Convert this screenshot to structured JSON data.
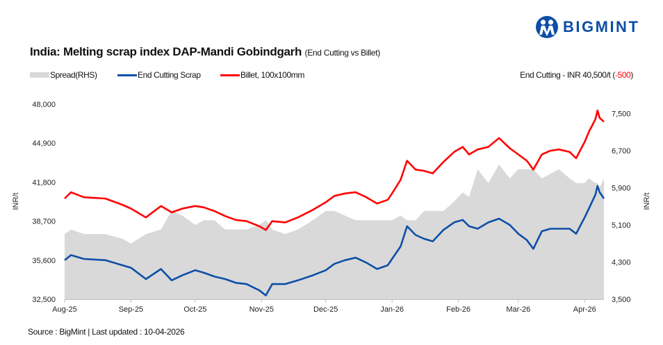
{
  "logo": {
    "text": "BIGMINT",
    "color": "#0d4ea6"
  },
  "title": "India: Melting scrap index DAP-Mandi Gobindgarh",
  "subtitle": "(End Cutting vs Billet)",
  "note": {
    "prefix": "End Cutting - INR 40,500/t (",
    "change": "-500",
    "suffix": ")"
  },
  "source": "Source : BigMint | Last updated : 10-04-2026",
  "chart_data": {
    "type": "line",
    "left_axis": {
      "label": "INR/t",
      "range": [
        32500,
        48000
      ],
      "ticks": [
        "32,500",
        "35,600",
        "38,700",
        "41,800",
        "44,900",
        "48,000"
      ],
      "tick_values": [
        32500,
        35600,
        38700,
        41800,
        44900,
        48000
      ]
    },
    "right_axis": {
      "label": "INR/t",
      "range": [
        3500,
        7700
      ],
      "ticks": [
        "3,500",
        "4,300",
        "5,100",
        "5,900",
        "6,700",
        "7,500"
      ],
      "tick_values": [
        3500,
        4300,
        5100,
        5900,
        6700,
        7500
      ]
    },
    "x_ticks": [
      "Aug-25",
      "Sep-25",
      "Oct-25",
      "Nov-25",
      "Dec-25",
      "Jan-26",
      "Feb-26",
      "Mar-26",
      "Apr-26"
    ],
    "x_tick_dates": [
      "2025-08-01",
      "2025-09-01",
      "2025-10-01",
      "2025-11-01",
      "2025-12-01",
      "2026-01-01",
      "2026-02-01",
      "2026-03-01",
      "2026-04-01"
    ],
    "grid": false,
    "legend_position": "top-left",
    "x": [
      "2025-08-01",
      "2025-08-04",
      "2025-08-10",
      "2025-08-20",
      "2025-08-28",
      "2025-09-01",
      "2025-09-08",
      "2025-09-15",
      "2025-09-20",
      "2025-09-25",
      "2025-10-01",
      "2025-10-05",
      "2025-10-10",
      "2025-10-15",
      "2025-10-20",
      "2025-10-25",
      "2025-10-31",
      "2025-11-03",
      "2025-11-06",
      "2025-11-12",
      "2025-11-18",
      "2025-11-25",
      "2025-12-01",
      "2025-12-05",
      "2025-12-10",
      "2025-12-15",
      "2025-12-20",
      "2025-12-25",
      "2025-12-30",
      "2026-01-01",
      "2026-01-05",
      "2026-01-08",
      "2026-01-12",
      "2026-01-16",
      "2026-01-20",
      "2026-01-25",
      "2026-01-30",
      "2026-02-03",
      "2026-02-06",
      "2026-02-10",
      "2026-02-15",
      "2026-02-20",
      "2026-02-25",
      "2026-03-01",
      "2026-03-05",
      "2026-03-08",
      "2026-03-12",
      "2026-03-16",
      "2026-03-20",
      "2026-03-25",
      "2026-03-28",
      "2026-04-01",
      "2026-04-03",
      "2026-04-06",
      "2026-04-07",
      "2026-04-08",
      "2026-04-10"
    ],
    "series": [
      {
        "name": "Spread(RHS)",
        "type": "area",
        "axis": "right",
        "color": "#d9d9d9",
        "values": [
          4900,
          5000,
          4900,
          4900,
          4800,
          4700,
          4900,
          5000,
          5400,
          5300,
          5100,
          5200,
          5200,
          5000,
          5000,
          5000,
          5100,
          5200,
          5000,
          4900,
          5000,
          5200,
          5400,
          5400,
          5300,
          5200,
          5200,
          5200,
          5200,
          5200,
          5300,
          5200,
          5200,
          5400,
          5400,
          5400,
          5600,
          5800,
          5700,
          6300,
          6000,
          6400,
          6100,
          6300,
          6300,
          6300,
          6100,
          6200,
          6300,
          6100,
          6000,
          6000,
          6100,
          6000,
          6000,
          5900,
          6100
        ]
      },
      {
        "name": "End Cutting Scrap",
        "axis": "left",
        "color": "#0d4ea6",
        "values": [
          35600,
          36000,
          35700,
          35600,
          35200,
          35000,
          34100,
          34900,
          34000,
          34400,
          34800,
          34600,
          34300,
          34100,
          33800,
          33700,
          33200,
          32800,
          33700,
          33700,
          34000,
          34400,
          34800,
          35300,
          35600,
          35800,
          35400,
          34900,
          35200,
          35700,
          36700,
          38300,
          37600,
          37300,
          37100,
          38000,
          38600,
          38800,
          38300,
          38100,
          38600,
          38900,
          38400,
          37700,
          37200,
          36500,
          37900,
          38100,
          38100,
          38100,
          37700,
          39000,
          39700,
          40800,
          41500,
          41000,
          40500
        ]
      },
      {
        "name": "Billet, 100x100mm",
        "axis": "left",
        "color": "#ff0000",
        "values": [
          40500,
          41000,
          40600,
          40500,
          40000,
          39700,
          39000,
          39900,
          39400,
          39700,
          39900,
          39800,
          39500,
          39100,
          38800,
          38700,
          38300,
          38000,
          38700,
          38600,
          39000,
          39600,
          40200,
          40700,
          40900,
          41000,
          40600,
          40100,
          40400,
          40900,
          42000,
          43500,
          42800,
          42700,
          42500,
          43400,
          44200,
          44600,
          44000,
          44400,
          44600,
          45300,
          44500,
          44000,
          43500,
          42800,
          44000,
          44300,
          44400,
          44200,
          43700,
          45000,
          45800,
          46800,
          47500,
          46900,
          46600
        ]
      }
    ]
  }
}
